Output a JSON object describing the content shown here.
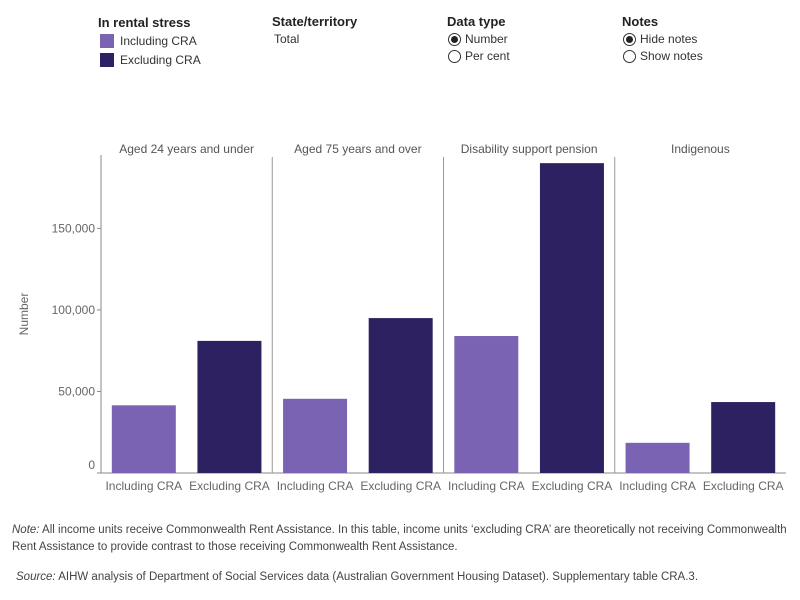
{
  "controls": {
    "legend": {
      "title": "In rental stress",
      "items": [
        {
          "label": "Including CRA",
          "color": "#7b63b3"
        },
        {
          "label": "Excluding CRA",
          "color": "#2e2161"
        }
      ]
    },
    "state": {
      "title": "State/territory",
      "value": "Total"
    },
    "data_type": {
      "title": "Data type",
      "options": [
        "Number",
        "Per cent"
      ],
      "selected": "Number"
    },
    "notes": {
      "title": "Notes",
      "options": [
        "Hide notes",
        "Show notes"
      ],
      "selected": "Hide notes"
    }
  },
  "chart_data": {
    "type": "bar",
    "ylabel": "Number",
    "ylim": [
      0,
      195000
    ],
    "yticks": [
      0,
      50000,
      100000,
      150000
    ],
    "ytick_labels": [
      "0",
      "50,000",
      "100,000",
      "150,000"
    ],
    "panels": [
      {
        "title": "Aged 24 years and under",
        "categories": [
          "Including CRA",
          "Excluding CRA"
        ],
        "values": [
          41500,
          81000
        ],
        "colors": [
          "#7b63b3",
          "#2e2161"
        ]
      },
      {
        "title": "Aged 75 years and over",
        "categories": [
          "Including CRA",
          "Excluding CRA"
        ],
        "values": [
          45500,
          95000
        ],
        "colors": [
          "#7b63b3",
          "#2e2161"
        ]
      },
      {
        "title": "Disability support pension",
        "categories": [
          "Including CRA",
          "Excluding CRA"
        ],
        "values": [
          84000,
          190000
        ],
        "colors": [
          "#7b63b3",
          "#2e2161"
        ]
      },
      {
        "title": "Indigenous",
        "categories": [
          "Including CRA",
          "Excluding CRA"
        ],
        "values": [
          18500,
          43500
        ],
        "colors": [
          "#7b63b3",
          "#2e2161"
        ]
      }
    ]
  },
  "notes": {
    "note_label": "Note:",
    "note_text": " All income units receive Commonwealth Rent Assistance. In this table, income units ‘excluding CRA’ are theoretically not receiving Commonwealth Rent Assistance to provide contrast to those receiving Commonwealth Rent Assistance.",
    "source_label": "Source:",
    "source_text": " AIHW analysis of Department of Social Services data (Australian Government Housing Dataset). Supplementary table CRA.3."
  }
}
